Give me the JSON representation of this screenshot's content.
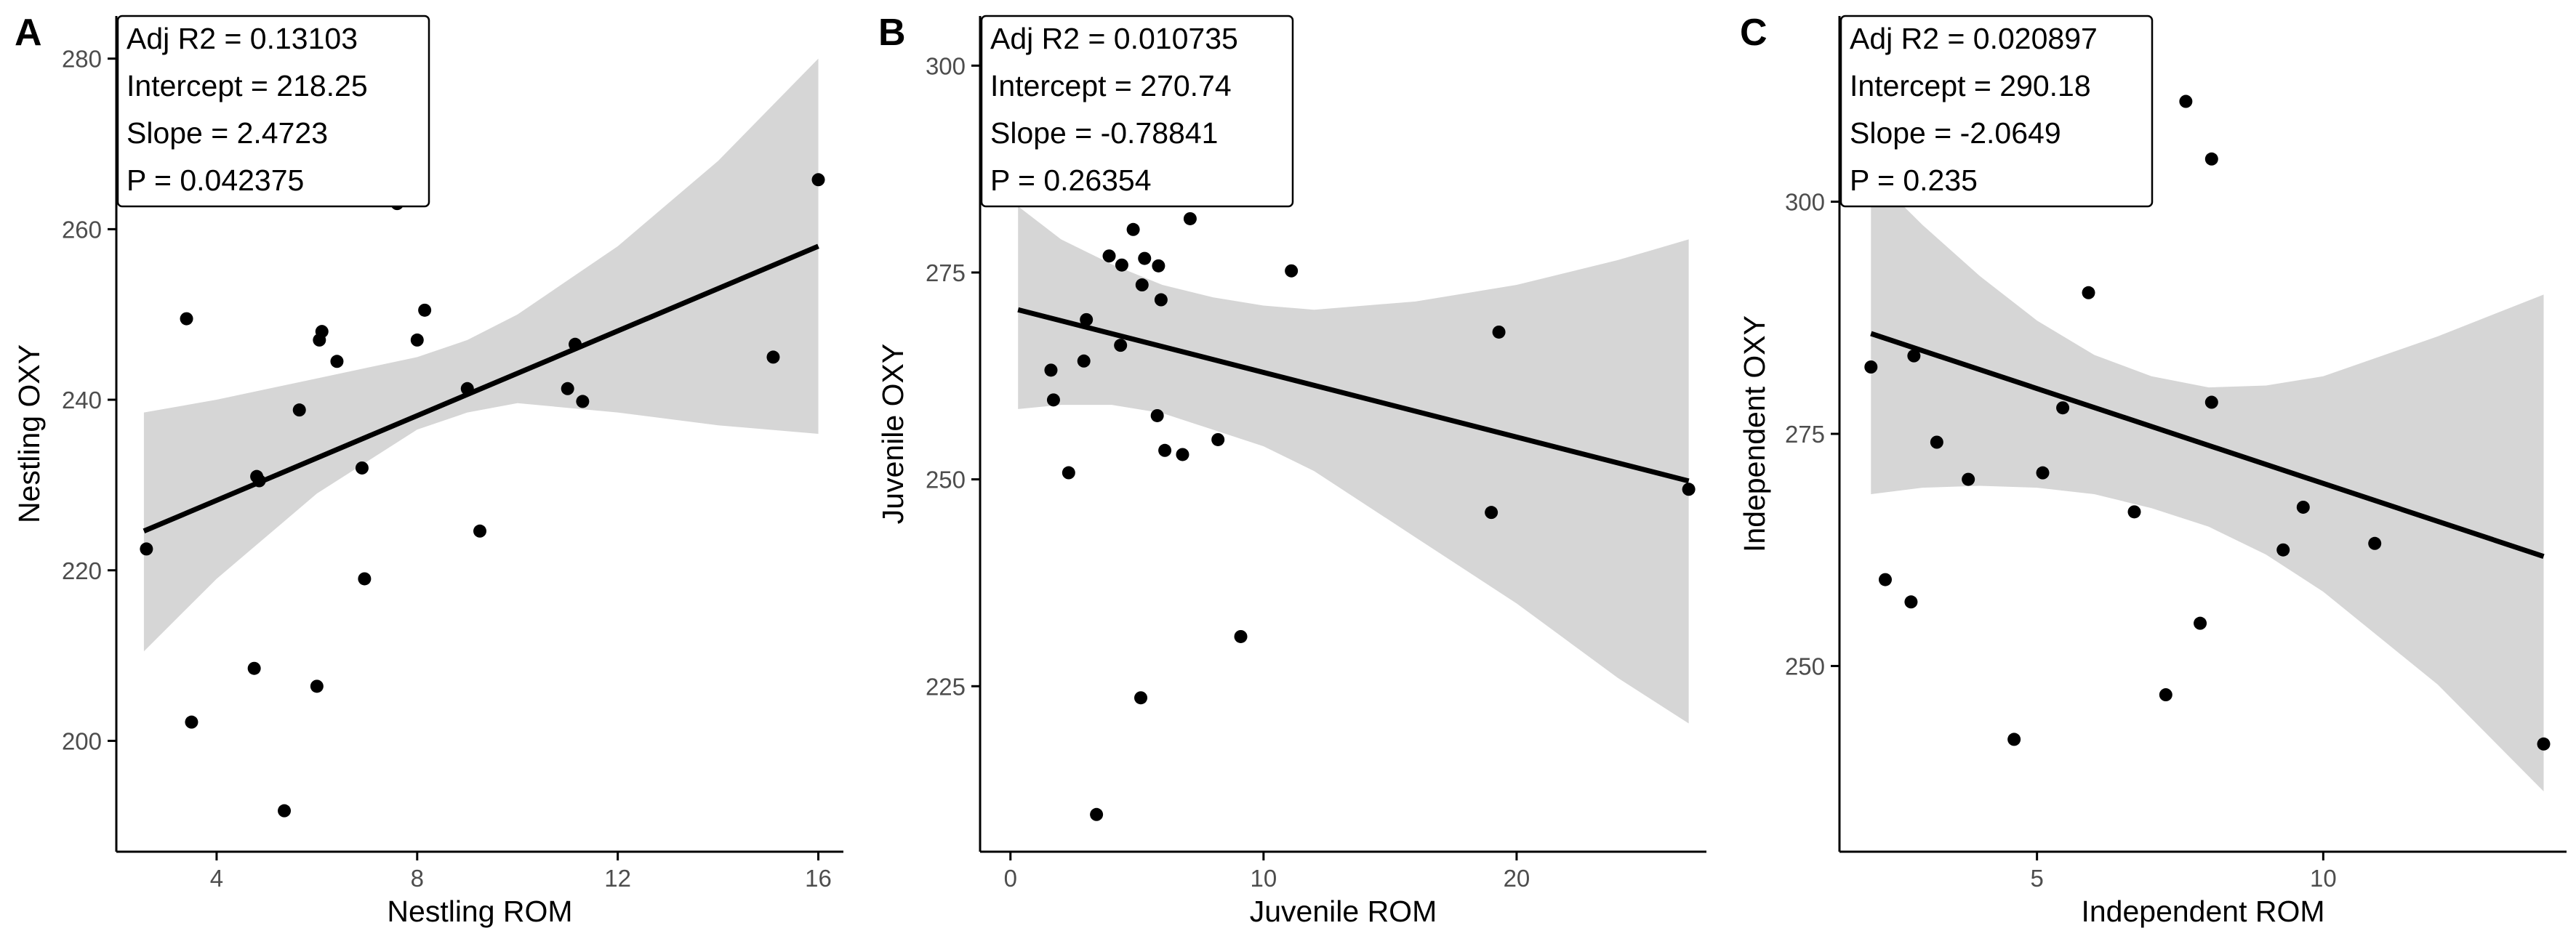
{
  "colors": {
    "band": "#d6d6d6",
    "line": "#000000",
    "point": "#000000",
    "axis": "#000000"
  },
  "chart_data": [
    {
      "type": "scatter",
      "panel_label": "A",
      "xlabel": "Nestling ROM",
      "ylabel": "Nestling OXY",
      "xlim": [
        2.0,
        16.5
      ],
      "ylim": [
        187,
        285
      ],
      "xticks": [
        4,
        8,
        12,
        16
      ],
      "yticks": [
        200,
        220,
        240,
        260,
        280
      ],
      "stats": [
        "Adj R2 =  0.13103",
        "Intercept = 218.25",
        "Slope = 2.4723",
        "P = 0.042375"
      ],
      "fit": {
        "x": [
          2.55,
          16.0
        ],
        "y": [
          224.6,
          258.0
        ]
      },
      "band": {
        "x": [
          2.55,
          4,
          6,
          8,
          9,
          10,
          12,
          14,
          16
        ],
        "lower": [
          210.5,
          219,
          229,
          236.5,
          238.5,
          239.6,
          238.5,
          237,
          236
        ],
        "upper": [
          238.5,
          240,
          242.5,
          245,
          247,
          250,
          258,
          268,
          280
        ]
      },
      "points": [
        [
          2.6,
          222.5
        ],
        [
          3.4,
          249.5
        ],
        [
          3.5,
          202.2
        ],
        [
          4.75,
          208.5
        ],
        [
          4.8,
          231
        ],
        [
          4.85,
          230.5
        ],
        [
          5.35,
          191.8
        ],
        [
          5.65,
          238.8
        ],
        [
          6.0,
          206.4
        ],
        [
          6.05,
          247
        ],
        [
          6.1,
          248
        ],
        [
          6.4,
          244.5
        ],
        [
          6.9,
          232
        ],
        [
          6.95,
          219
        ],
        [
          7.6,
          263
        ],
        [
          8.0,
          247
        ],
        [
          8.15,
          250.5
        ],
        [
          9.0,
          241.3
        ],
        [
          9.25,
          224.6
        ],
        [
          11.0,
          241.3
        ],
        [
          11.15,
          246.5
        ],
        [
          11.3,
          239.8
        ],
        [
          15.1,
          245
        ],
        [
          16.0,
          265.8
        ]
      ]
    },
    {
      "type": "scatter",
      "panel_label": "B",
      "xlabel": "Juvenile ROM",
      "ylabel": "Juvenile OXY",
      "xlim": [
        -1.2,
        27.5
      ],
      "ylim": [
        205,
        306
      ],
      "xticks": [
        0,
        10,
        20
      ],
      "yticks": [
        225,
        250,
        275,
        300
      ],
      "stats": [
        "Adj R2 =  0.010735",
        "Intercept = 270.74",
        "Slope = -0.78841",
        "P = 0.26354"
      ],
      "fit": {
        "x": [
          0.3,
          26.8
        ],
        "y": [
          270.5,
          249.8
        ]
      },
      "band": {
        "x": [
          0.3,
          2,
          4,
          6,
          8,
          10,
          12,
          16,
          20,
          24,
          26.8
        ],
        "lower": [
          258.5,
          259,
          259,
          258,
          256,
          254,
          251,
          243,
          235,
          226,
          220.5
        ],
        "upper": [
          283,
          279,
          276,
          273.5,
          272,
          271,
          270.5,
          271.5,
          273.5,
          276.5,
          279
        ]
      },
      "points": [
        [
          1.6,
          263.2
        ],
        [
          1.7,
          259.6
        ],
        [
          2.3,
          250.8
        ],
        [
          2.9,
          264.3
        ],
        [
          3.0,
          269.3
        ],
        [
          3.4,
          209.5
        ],
        [
          3.9,
          277
        ],
        [
          4.35,
          266.2
        ],
        [
          4.4,
          275.9
        ],
        [
          4.85,
          280.2
        ],
        [
          5.15,
          223.6
        ],
        [
          5.2,
          273.5
        ],
        [
          5.3,
          276.7
        ],
        [
          5.8,
          257.7
        ],
        [
          5.85,
          275.8
        ],
        [
          5.95,
          271.7
        ],
        [
          6.1,
          253.5
        ],
        [
          6.8,
          253
        ],
        [
          7.1,
          281.5
        ],
        [
          8.2,
          254.8
        ],
        [
          9.1,
          231
        ],
        [
          10.6,
          284
        ],
        [
          11.1,
          275.2
        ],
        [
          19.0,
          246
        ],
        [
          19.3,
          267.8
        ],
        [
          26.8,
          248.8
        ]
      ]
    },
    {
      "type": "scatter",
      "panel_label": "C",
      "xlabel": "Independent ROM",
      "ylabel": "Independent OXY",
      "xlim": [
        1.55,
        14.25
      ],
      "ylim": [
        230,
        320
      ],
      "xticks": [
        5,
        10
      ],
      "yticks": [
        250,
        275,
        300
      ],
      "stats": [
        "Adj R2 =  0.020897",
        "Intercept = 290.18",
        "Slope = -2.0649",
        "P = 0.235"
      ],
      "fit": {
        "x": [
          2.1,
          13.85
        ],
        "y": [
          285.8,
          261.8
        ]
      },
      "band": {
        "x": [
          2.1,
          3,
          4,
          5,
          6,
          7,
          8,
          9,
          10,
          12,
          13.85
        ],
        "lower": [
          268.5,
          269.2,
          269.4,
          269.2,
          268.5,
          267,
          265,
          262,
          258,
          248,
          236.5
        ],
        "upper": [
          303,
          297.5,
          292,
          287.2,
          283.5,
          281.2,
          280,
          280.2,
          281.2,
          285.5,
          290
        ]
      },
      "points": [
        [
          2.1,
          282.2
        ],
        [
          2.35,
          259.3
        ],
        [
          2.8,
          256.9
        ],
        [
          2.85,
          283.4
        ],
        [
          3.25,
          274.1
        ],
        [
          3.8,
          270.1
        ],
        [
          4.6,
          242.1
        ],
        [
          5.1,
          270.8
        ],
        [
          5.45,
          277.8
        ],
        [
          5.9,
          290.2
        ],
        [
          6.7,
          266.6
        ],
        [
          7.25,
          246.9
        ],
        [
          7.6,
          310.8
        ],
        [
          7.85,
          254.6
        ],
        [
          8.05,
          278.4
        ],
        [
          8.05,
          304.6
        ],
        [
          9.3,
          262.5
        ],
        [
          9.65,
          267.1
        ],
        [
          10.9,
          263.2
        ],
        [
          13.85,
          241.6
        ]
      ]
    }
  ]
}
